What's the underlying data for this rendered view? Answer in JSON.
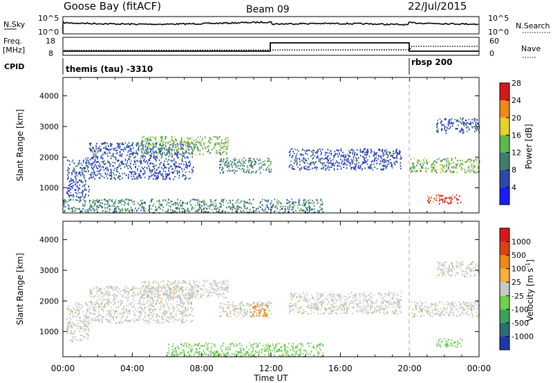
{
  "header": {
    "station": "Goose Bay (fitACF)",
    "beam": "Beam 09",
    "date": "22/Jul/2015"
  },
  "top_panel": {
    "nsky_label": "N.Sky",
    "nsky_ticks": [
      "10^5",
      "10^0"
    ],
    "nsearch_label": "N.Search",
    "nsearch_ticks": [
      "10^5",
      "10^0"
    ],
    "freq_label_1": "Freq.",
    "freq_label_2": "[MHz]",
    "freq_ticks": [
      "18",
      "8"
    ],
    "nave_label": "Nave",
    "nave_ticks": [
      "60",
      "0"
    ],
    "cpid_label": "CPID",
    "cpid_segments": [
      {
        "label": "themis (tau) -3310",
        "start_hour": 0
      },
      {
        "label": "rbsp 200",
        "start_hour": 20
      }
    ]
  },
  "chart_data": [
    {
      "type": "heatmap",
      "name": "power",
      "ylabel": "Slant Range [km]",
      "ylim": [
        180,
        4600
      ],
      "yticks": [
        1000,
        2000,
        3000,
        4000
      ],
      "xlim": [
        0,
        24
      ],
      "colorbar_label": "Power [dB]",
      "colorbar_ticks": [
        "4",
        "8",
        "12",
        "16",
        "20",
        "24",
        "28"
      ],
      "colors": [
        "#1a1aff",
        "#2a4aa5",
        "#3c7f6e",
        "#5fb84a",
        "#e8d22a",
        "#f08a14",
        "#d81818"
      ],
      "regions": [
        {
          "t": [
            0.2,
            1.5
          ],
          "r": [
            700,
            2000
          ],
          "level": 1
        },
        {
          "t": [
            1.5,
            7.5
          ],
          "r": [
            1300,
            2500
          ],
          "level": 1
        },
        {
          "t": [
            4.5,
            9.5
          ],
          "r": [
            2100,
            2700
          ],
          "level": 3
        },
        {
          "t": [
            9.0,
            12.0
          ],
          "r": [
            1500,
            2000
          ],
          "level": 2
        },
        {
          "t": [
            13.0,
            19.5
          ],
          "r": [
            1600,
            2300
          ],
          "level": 1
        },
        {
          "t": [
            20.0,
            24.0
          ],
          "r": [
            1500,
            2000
          ],
          "level": 3
        },
        {
          "t": [
            21.0,
            23.0
          ],
          "r": [
            500,
            800
          ],
          "level": 6
        },
        {
          "t": [
            0.0,
            15.0
          ],
          "r": [
            200,
            650
          ],
          "level": 2
        },
        {
          "t": [
            21.5,
            24.0
          ],
          "r": [
            2800,
            3300
          ],
          "level": 1
        }
      ]
    },
    {
      "type": "heatmap",
      "name": "velocity",
      "ylabel": "Slant Range [km]",
      "ylim": [
        180,
        4600
      ],
      "yticks": [
        1000,
        2000,
        3000,
        4000
      ],
      "xlim": [
        0,
        24
      ],
      "xlabel": "Time UT",
      "xticks": [
        "00:00",
        "04:00",
        "08:00",
        "12:00",
        "16:00",
        "20:00",
        "00:00"
      ],
      "colorbar_label": "Velocity [m s^-1]",
      "colorbar_ticks": [
        "1000",
        "500",
        "100",
        "25",
        "-25",
        "-100",
        "-500",
        "-1000"
      ],
      "colors": [
        "#1a3aa8",
        "#2a6e78",
        "#3aa55a",
        "#6fd24a",
        "#c8c8c8",
        "#f4b040",
        "#f08a14",
        "#e04010",
        "#d81818"
      ],
      "regions": [
        {
          "t": [
            0.2,
            1.5
          ],
          "r": [
            700,
            2000
          ],
          "level": 4
        },
        {
          "t": [
            1.5,
            7.5
          ],
          "r": [
            1300,
            2500
          ],
          "level": 4
        },
        {
          "t": [
            4.5,
            9.5
          ],
          "r": [
            2100,
            2700
          ],
          "level": 4
        },
        {
          "t": [
            9.0,
            12.0
          ],
          "r": [
            1500,
            2000
          ],
          "level": 4
        },
        {
          "t": [
            10.8,
            11.8
          ],
          "r": [
            1500,
            1900
          ],
          "level": 6
        },
        {
          "t": [
            13.0,
            19.5
          ],
          "r": [
            1600,
            2300
          ],
          "level": 4
        },
        {
          "t": [
            20.0,
            24.0
          ],
          "r": [
            1500,
            2000
          ],
          "level": 4
        },
        {
          "t": [
            21.5,
            23.0
          ],
          "r": [
            500,
            800
          ],
          "level": 3
        },
        {
          "t": [
            6.0,
            15.0
          ],
          "r": [
            200,
            650
          ],
          "level": 3
        },
        {
          "t": [
            21.5,
            24.0
          ],
          "r": [
            2800,
            3300
          ],
          "level": 4
        }
      ]
    }
  ]
}
